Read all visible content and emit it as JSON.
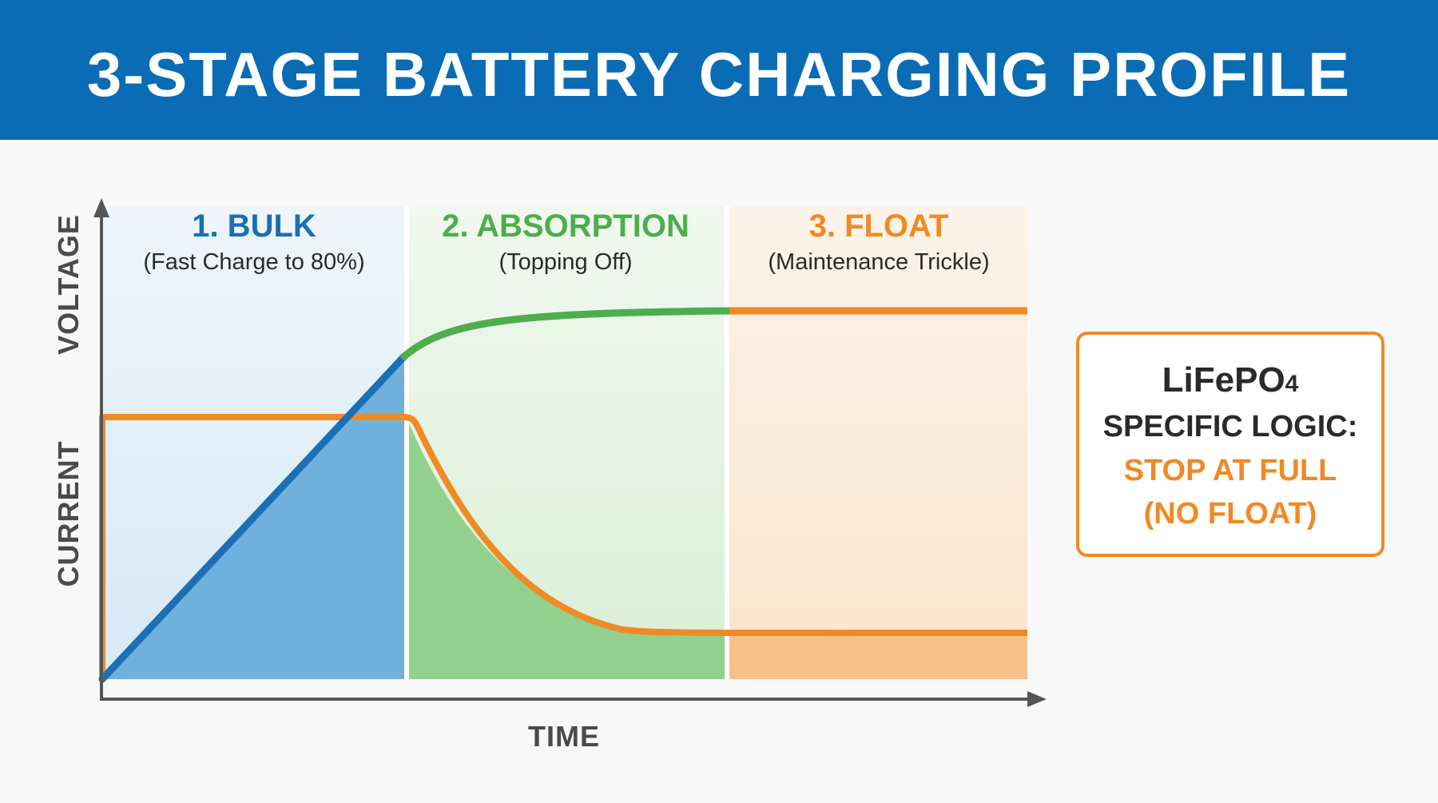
{
  "header": {
    "title": "3-STAGE BATTERY CHARGING PROFILE"
  },
  "axes": {
    "y_top": "VOLTAGE",
    "y_bottom": "CURRENT",
    "x": "TIME"
  },
  "stages": [
    {
      "title": "1. BULK",
      "subtitle": "(Fast Charge to 80%)"
    },
    {
      "title": "2. ABSORPTION",
      "subtitle": "(Topping Off)"
    },
    {
      "title": "3. FLOAT",
      "subtitle": "(Maintenance Trickle)"
    }
  ],
  "note": {
    "line1_main": "LiFePO",
    "line1_sub": "4",
    "line2": "SPECIFIC LOGIC:",
    "line3": "STOP AT FULL",
    "line4": "(NO FLOAT)"
  },
  "colors": {
    "header": "#0a6cb4",
    "bulk": "#1a6fb5",
    "absorption": "#4cae4c",
    "float": "#f08a24",
    "axis": "#555555"
  }
}
